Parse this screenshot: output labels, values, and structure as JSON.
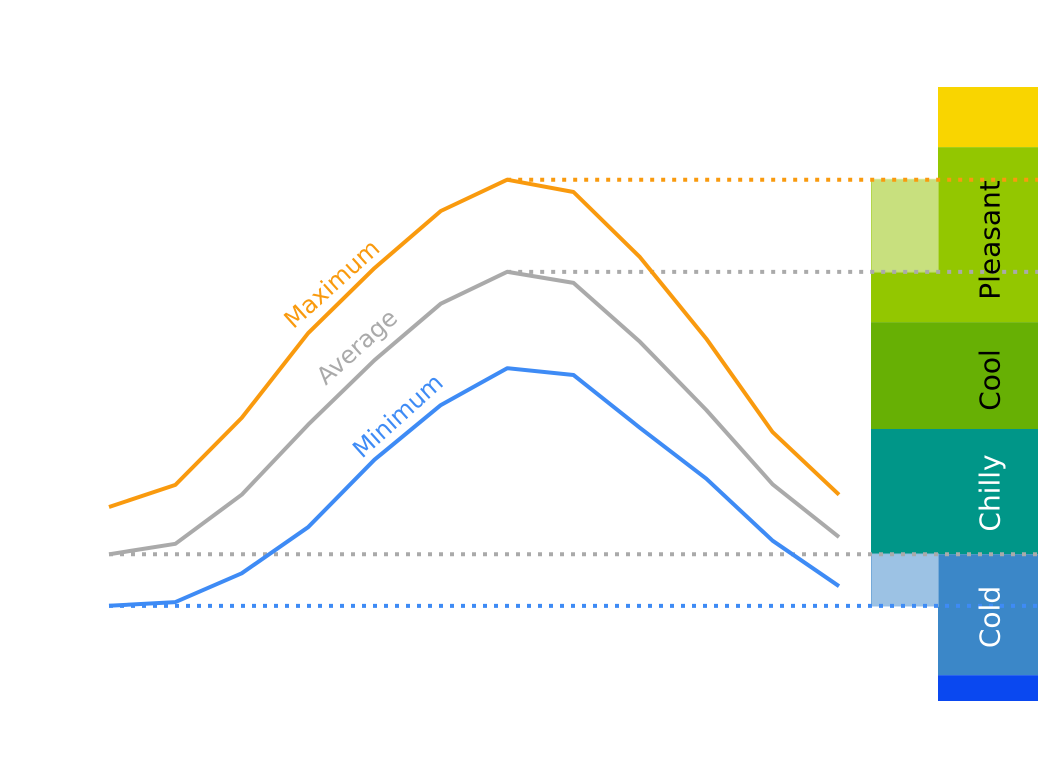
{
  "chart_data": {
    "type": "line",
    "title": "",
    "xlabel": "",
    "ylabel": "",
    "ylim": [
      0,
      100
    ],
    "units": "relative temperature (normalized scale, 0 = bottom of band bar, 100 = top)",
    "grid": false,
    "legend": "inline labels on lines",
    "x": [
      1,
      2,
      3,
      4,
      5,
      6,
      7,
      8,
      9,
      10,
      11,
      12
    ],
    "series": [
      {
        "name": "Maximum",
        "key": "max",
        "color": "#f99a0e",
        "values": [
          31.6,
          35.2,
          46.1,
          59.9,
          70.5,
          79.8,
          84.9,
          82.9,
          72.3,
          59.0,
          43.8,
          33.6
        ]
      },
      {
        "name": "Average",
        "key": "avg",
        "color": "#aaaaaa",
        "values": [
          23.9,
          25.6,
          33.6,
          45.0,
          55.5,
          64.7,
          69.9,
          68.1,
          58.5,
          47.4,
          35.3,
          26.7
        ]
      },
      {
        "name": "Minimum",
        "key": "min",
        "color": "#3e8bf5",
        "values": [
          15.5,
          16.1,
          20.8,
          28.3,
          39.3,
          48.2,
          54.2,
          53.1,
          44.5,
          36.2,
          26.1,
          18.7
        ]
      }
    ],
    "reference_lines": [
      {
        "name": "peak-maximum",
        "series": "max",
        "value": 84.9,
        "from_x": 7,
        "color": "#f99a0e"
      },
      {
        "name": "peak-average",
        "series": "avg",
        "value": 69.9,
        "from_x": 7,
        "color": "#aaaaaa"
      },
      {
        "name": "low-average",
        "series": "avg",
        "value": 23.9,
        "from_x": 1,
        "color": "#aaaaaa"
      },
      {
        "name": "low-minimum",
        "series": "min",
        "value": 15.5,
        "from_x": 1,
        "color": "#3e8bf5"
      }
    ],
    "bands": [
      {
        "label": "",
        "from": 90.2,
        "to": 100.0,
        "color": "#f9d500",
        "text_color": "#000000"
      },
      {
        "label": "Pleasant",
        "from": 61.7,
        "to": 90.2,
        "color": "#93c700",
        "text_color": "#000000"
      },
      {
        "label": "Cool",
        "from": 44.3,
        "to": 61.7,
        "color": "#67b004",
        "text_color": "#000000"
      },
      {
        "label": "Chilly",
        "from": 23.9,
        "to": 44.3,
        "color": "#009688",
        "text_color": "#ffffff"
      },
      {
        "label": "Cold",
        "from": 4.2,
        "to": 23.9,
        "color": "#3b87c8",
        "text_color": "#ffffff"
      },
      {
        "label": "",
        "from": 0.0,
        "to": 4.2,
        "color": "#0a48f0",
        "text_color": "#ffffff"
      }
    ],
    "range_column": {
      "from": 15.5,
      "to": 84.9
    },
    "highlights": [
      {
        "name": "max-avg-highlight",
        "from": 69.9,
        "to": 84.9,
        "color": "#c8e07e"
      },
      {
        "name": "avg-min-highlight",
        "from": 15.5,
        "to": 23.9,
        "color": "#9cc2e4"
      }
    ]
  }
}
